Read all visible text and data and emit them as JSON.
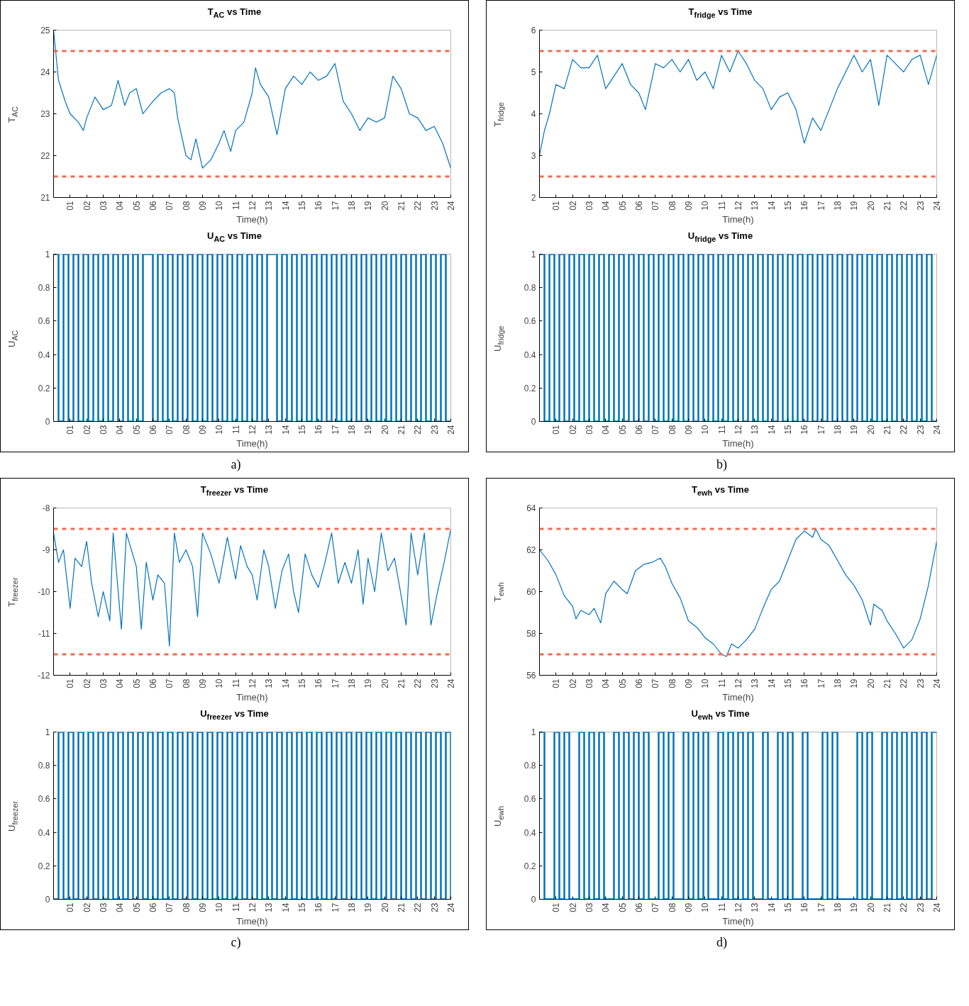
{
  "chart_data": [
    {
      "type": "line",
      "title": "T$_{AC}$ vs Time",
      "xlabel": "Time(h)",
      "ylabel": "T$_{AC}$",
      "color": "#0072bd",
      "grid": false,
      "xlim": [
        0,
        24
      ],
      "ylim": [
        21,
        25
      ],
      "yticks": [
        21,
        22,
        23,
        24,
        25
      ],
      "xticks": [
        {
          "value": 1,
          "label": "01"
        },
        {
          "value": 2,
          "label": "02"
        },
        {
          "value": 3,
          "label": "03"
        },
        {
          "value": 4,
          "label": "04"
        },
        {
          "value": 5,
          "label": "05"
        },
        {
          "value": 6,
          "label": "06"
        },
        {
          "value": 7,
          "label": "07"
        },
        {
          "value": 8,
          "label": "08"
        },
        {
          "value": 9,
          "label": "09"
        },
        {
          "value": 10,
          "label": "10"
        },
        {
          "value": 11,
          "label": "11"
        },
        {
          "value": 12,
          "label": "12"
        },
        {
          "value": 13,
          "label": "13"
        },
        {
          "value": 14,
          "label": "14"
        },
        {
          "value": 15,
          "label": "15"
        },
        {
          "value": 16,
          "label": "16"
        },
        {
          "value": 17,
          "label": "17"
        },
        {
          "value": 18,
          "label": "18"
        },
        {
          "value": 19,
          "label": "19"
        },
        {
          "value": 20,
          "label": "20"
        },
        {
          "value": 21,
          "label": "21"
        },
        {
          "value": 22,
          "label": "22"
        },
        {
          "value": 23,
          "label": "23"
        },
        {
          "value": 24,
          "label": "24"
        }
      ],
      "x": [
        0,
        0.3,
        0.7,
        1.0,
        1.5,
        1.8,
        2.0,
        2.5,
        3.0,
        3.5,
        3.9,
        4.3,
        4.6,
        5.0,
        5.4,
        6.0,
        6.5,
        7.0,
        7.3,
        7.5,
        8.0,
        8.3,
        8.6,
        9.0,
        9.5,
        10.0,
        10.3,
        10.7,
        11.0,
        11.5,
        12.0,
        12.2,
        12.5,
        13.0,
        13.5,
        14.0,
        14.5,
        15.0,
        15.5,
        16.0,
        16.5,
        17.0,
        17.5,
        18.0,
        18.5,
        19.0,
        19.5,
        20.0,
        20.5,
        21.0,
        21.5,
        22.0,
        22.5,
        23.0,
        23.5,
        24.0
      ],
      "values": [
        25.0,
        23.8,
        23.3,
        23.0,
        22.8,
        22.6,
        22.9,
        23.4,
        23.1,
        23.2,
        23.8,
        23.2,
        23.5,
        23.6,
        23.0,
        23.3,
        23.5,
        23.6,
        23.5,
        22.9,
        22.0,
        21.9,
        22.4,
        21.7,
        21.9,
        22.3,
        22.6,
        22.1,
        22.6,
        22.8,
        23.5,
        24.1,
        23.7,
        23.4,
        22.5,
        23.6,
        23.9,
        23.7,
        24.0,
        23.8,
        23.9,
        24.2,
        23.3,
        23.0,
        22.6,
        22.9,
        22.8,
        22.9,
        23.9,
        23.6,
        23.0,
        22.9,
        22.6,
        22.7,
        22.3,
        21.7
      ],
      "ref_lines": [
        {
          "axis": "y",
          "value": 24.5,
          "color": "#f26b4f",
          "line_style": "dashed"
        },
        {
          "axis": "y",
          "value": 21.5,
          "color": "#f26b4f",
          "line_style": "dashed"
        }
      ]
    },
    {
      "type": "step",
      "title": "U$_{AC}$ vs Time",
      "xlabel": "Time(h)",
      "ylabel": "U$_{AC}$",
      "color": "#0072bd",
      "grid": false,
      "xlim": [
        0,
        24
      ],
      "ylim": [
        0,
        1
      ],
      "yticks": [
        0,
        0.2,
        0.4,
        0.6,
        0.8,
        1
      ],
      "xticks": [
        {
          "value": 1,
          "label": "01"
        },
        {
          "value": 2,
          "label": "02"
        },
        {
          "value": 3,
          "label": "03"
        },
        {
          "value": 4,
          "label": "04"
        },
        {
          "value": 5,
          "label": "05"
        },
        {
          "value": 6,
          "label": "06"
        },
        {
          "value": 7,
          "label": "07"
        },
        {
          "value": 8,
          "label": "08"
        },
        {
          "value": 9,
          "label": "09"
        },
        {
          "value": 10,
          "label": "10"
        },
        {
          "value": 11,
          "label": "11"
        },
        {
          "value": 12,
          "label": "12"
        },
        {
          "value": 13,
          "label": "13"
        },
        {
          "value": 14,
          "label": "14"
        },
        {
          "value": 15,
          "label": "15"
        },
        {
          "value": 16,
          "label": "16"
        },
        {
          "value": 17,
          "label": "17"
        },
        {
          "value": 18,
          "label": "18"
        },
        {
          "value": 19,
          "label": "19"
        },
        {
          "value": 20,
          "label": "20"
        },
        {
          "value": 21,
          "label": "21"
        },
        {
          "value": 22,
          "label": "22"
        },
        {
          "value": 23,
          "label": "23"
        },
        {
          "value": 24,
          "label": "24"
        }
      ],
      "x": [
        0,
        0.3,
        0.6,
        0.9,
        1.2,
        1.5,
        1.8,
        2.1,
        2.4,
        2.7,
        3,
        3.3,
        3.6,
        3.9,
        4.2,
        4.5,
        4.8,
        5.1,
        5.4,
        5.7,
        6,
        6.3,
        6.6,
        6.9,
        7.2,
        7.5,
        7.8,
        8.1,
        8.4,
        8.7,
        9,
        9.3,
        9.6,
        9.9,
        10.2,
        10.5,
        10.8,
        11.1,
        11.4,
        11.7,
        12,
        12.3,
        12.6,
        12.9,
        13.2,
        13.5,
        13.8,
        14.1,
        14.4,
        14.7,
        15,
        15.3,
        15.6,
        15.9,
        16.2,
        16.5,
        16.8,
        17.1,
        17.4,
        17.7,
        18,
        18.3,
        18.6,
        18.9,
        19.2,
        19.5,
        19.8,
        20.1,
        20.4,
        20.7,
        21,
        21.3,
        21.6,
        21.9,
        22.2,
        22.5,
        22.8,
        23.1,
        23.4,
        23.7,
        24
      ],
      "values": [
        1,
        0,
        1,
        0,
        1,
        0,
        1,
        0,
        1,
        0,
        1,
        0,
        1,
        0,
        1,
        0,
        1,
        0,
        1,
        1,
        0,
        1,
        0,
        1,
        0,
        1,
        0,
        1,
        0,
        1,
        0,
        1,
        0,
        1,
        0,
        1,
        0,
        1,
        0,
        1,
        0,
        1,
        0,
        1,
        1,
        0,
        1,
        0,
        1,
        0,
        1,
        0,
        1,
        0,
        1,
        0,
        1,
        0,
        1,
        0,
        1,
        0,
        1,
        0,
        1,
        0,
        1,
        0,
        1,
        0,
        1,
        0,
        1,
        0,
        1,
        0,
        1,
        0,
        1,
        0,
        0
      ],
      "annotations": [
        "a)"
      ]
    },
    {
      "type": "line",
      "title": "T$_{fridge}$ vs Time",
      "xlabel": "Time(h)",
      "ylabel": "T$_{fridge}$",
      "color": "#0072bd",
      "grid": false,
      "xlim": [
        0,
        24
      ],
      "ylim": [
        2,
        6
      ],
      "yticks": [
        2,
        3,
        4,
        5,
        6
      ],
      "xticks": [
        {
          "value": 1,
          "label": "01"
        },
        {
          "value": 2,
          "label": "02"
        },
        {
          "value": 3,
          "label": "03"
        },
        {
          "value": 4,
          "label": "04"
        },
        {
          "value": 5,
          "label": "05"
        },
        {
          "value": 6,
          "label": "06"
        },
        {
          "value": 7,
          "label": "07"
        },
        {
          "value": 8,
          "label": "08"
        },
        {
          "value": 9,
          "label": "09"
        },
        {
          "value": 10,
          "label": "10"
        },
        {
          "value": 11,
          "label": "11"
        },
        {
          "value": 12,
          "label": "12"
        },
        {
          "value": 13,
          "label": "13"
        },
        {
          "value": 14,
          "label": "14"
        },
        {
          "value": 15,
          "label": "15"
        },
        {
          "value": 16,
          "label": "16"
        },
        {
          "value": 17,
          "label": "17"
        },
        {
          "value": 18,
          "label": "18"
        },
        {
          "value": 19,
          "label": "19"
        },
        {
          "value": 20,
          "label": "20"
        },
        {
          "value": 21,
          "label": "21"
        },
        {
          "value": 22,
          "label": "22"
        },
        {
          "value": 23,
          "label": "23"
        },
        {
          "value": 24,
          "label": "24"
        }
      ],
      "x": [
        0,
        0.3,
        0.6,
        1.0,
        1.5,
        2.0,
        2.5,
        3.0,
        3.5,
        4.0,
        4.5,
        5.0,
        5.5,
        6.0,
        6.4,
        7.0,
        7.5,
        8.0,
        8.5,
        9.0,
        9.5,
        10.0,
        10.5,
        11.0,
        11.5,
        12.0,
        12.5,
        13.0,
        13.5,
        14.0,
        14.5,
        15.0,
        15.5,
        16.0,
        16.5,
        17.0,
        17.5,
        18.0,
        18.5,
        19.0,
        19.5,
        20.0,
        20.5,
        21.0,
        21.5,
        22.0,
        22.5,
        23.0,
        23.5,
        24.0
      ],
      "values": [
        3.0,
        3.6,
        4.0,
        4.7,
        4.6,
        5.3,
        5.1,
        5.1,
        5.4,
        4.6,
        4.9,
        5.2,
        4.7,
        4.5,
        4.1,
        5.2,
        5.1,
        5.3,
        5.0,
        5.3,
        4.8,
        5.0,
        4.6,
        5.4,
        5.0,
        5.5,
        5.2,
        4.8,
        4.6,
        4.1,
        4.4,
        4.5,
        4.1,
        3.3,
        3.9,
        3.6,
        4.1,
        4.6,
        5.0,
        5.4,
        5.0,
        5.3,
        4.2,
        5.4,
        5.2,
        5.0,
        5.3,
        5.4,
        4.7,
        5.4
      ],
      "ref_lines": [
        {
          "axis": "y",
          "value": 5.5,
          "color": "#f26b4f",
          "line_style": "dashed"
        },
        {
          "axis": "y",
          "value": 2.5,
          "color": "#f26b4f",
          "line_style": "dashed"
        }
      ]
    },
    {
      "type": "step",
      "title": "U$_{fridge}$ vs Time",
      "xlabel": "Time(h)",
      "ylabel": "U$_{fridge}$",
      "color": "#0072bd",
      "grid": false,
      "xlim": [
        0,
        24
      ],
      "ylim": [
        0,
        1
      ],
      "yticks": [
        0,
        0.2,
        0.4,
        0.6,
        0.8,
        1
      ],
      "xticks": [
        {
          "value": 1,
          "label": "01"
        },
        {
          "value": 2,
          "label": "02"
        },
        {
          "value": 3,
          "label": "03"
        },
        {
          "value": 4,
          "label": "04"
        },
        {
          "value": 5,
          "label": "05"
        },
        {
          "value": 6,
          "label": "06"
        },
        {
          "value": 7,
          "label": "07"
        },
        {
          "value": 8,
          "label": "08"
        },
        {
          "value": 9,
          "label": "09"
        },
        {
          "value": 10,
          "label": "10"
        },
        {
          "value": 11,
          "label": "11"
        },
        {
          "value": 12,
          "label": "12"
        },
        {
          "value": 13,
          "label": "13"
        },
        {
          "value": 14,
          "label": "14"
        },
        {
          "value": 15,
          "label": "15"
        },
        {
          "value": 16,
          "label": "16"
        },
        {
          "value": 17,
          "label": "17"
        },
        {
          "value": 18,
          "label": "18"
        },
        {
          "value": 19,
          "label": "19"
        },
        {
          "value": 20,
          "label": "20"
        },
        {
          "value": 21,
          "label": "21"
        },
        {
          "value": 22,
          "label": "22"
        },
        {
          "value": 23,
          "label": "23"
        },
        {
          "value": 24,
          "label": "24"
        }
      ],
      "x": [
        0,
        0.3,
        0.6,
        0.9,
        1.2,
        1.5,
        1.8,
        2.1,
        2.4,
        2.7,
        3,
        3.3,
        3.6,
        3.9,
        4.2,
        4.5,
        4.8,
        5.1,
        5.4,
        5.7,
        6,
        6.3,
        6.6,
        6.9,
        7.2,
        7.5,
        7.8,
        8.1,
        8.4,
        8.7,
        9,
        9.3,
        9.6,
        9.9,
        10.2,
        10.5,
        10.8,
        11.1,
        11.4,
        11.7,
        12,
        12.3,
        12.6,
        12.9,
        13.2,
        13.5,
        13.8,
        14.1,
        14.4,
        14.7,
        15,
        15.3,
        15.6,
        15.9,
        16.2,
        16.5,
        16.8,
        17.1,
        17.4,
        17.7,
        18,
        18.3,
        18.6,
        18.9,
        19.2,
        19.5,
        19.8,
        20.1,
        20.4,
        20.7,
        21,
        21.3,
        21.6,
        21.9,
        22.2,
        22.5,
        22.8,
        23.1,
        23.4,
        23.7,
        24
      ],
      "values": [
        1,
        0,
        1,
        0,
        1,
        0,
        1,
        0,
        1,
        0,
        1,
        0,
        1,
        0,
        1,
        0,
        1,
        0,
        1,
        0,
        1,
        0,
        1,
        0,
        1,
        0,
        1,
        0,
        1,
        0,
        1,
        0,
        1,
        0,
        1,
        0,
        1,
        0,
        1,
        0,
        1,
        0,
        1,
        0,
        1,
        0,
        1,
        0,
        1,
        0,
        1,
        0,
        1,
        0,
        1,
        0,
        1,
        0,
        1,
        0,
        1,
        0,
        1,
        0,
        1,
        0,
        1,
        0,
        1,
        0,
        1,
        0,
        1,
        0,
        1,
        0,
        1,
        0,
        1,
        0,
        0
      ],
      "annotations": [
        "b)"
      ]
    },
    {
      "type": "line",
      "title": "T$_{freezer}$ vs Time",
      "xlabel": "Time(h)",
      "ylabel": "T$_{freezer}$",
      "color": "#0072bd",
      "grid": false,
      "xlim": [
        0,
        24
      ],
      "ylim": [
        -12,
        -8
      ],
      "yticks": [
        -12,
        -11,
        -10,
        -9,
        -8
      ],
      "xticks": [
        {
          "value": 1,
          "label": "01"
        },
        {
          "value": 2,
          "label": "02"
        },
        {
          "value": 3,
          "label": "03"
        },
        {
          "value": 4,
          "label": "04"
        },
        {
          "value": 5,
          "label": "05"
        },
        {
          "value": 6,
          "label": "06"
        },
        {
          "value": 7,
          "label": "07"
        },
        {
          "value": 8,
          "label": "08"
        },
        {
          "value": 9,
          "label": "09"
        },
        {
          "value": 10,
          "label": "10"
        },
        {
          "value": 11,
          "label": "11"
        },
        {
          "value": 12,
          "label": "12"
        },
        {
          "value": 13,
          "label": "13"
        },
        {
          "value": 14,
          "label": "14"
        },
        {
          "value": 15,
          "label": "15"
        },
        {
          "value": 16,
          "label": "16"
        },
        {
          "value": 17,
          "label": "17"
        },
        {
          "value": 18,
          "label": "18"
        },
        {
          "value": 19,
          "label": "19"
        },
        {
          "value": 20,
          "label": "20"
        },
        {
          "value": 21,
          "label": "21"
        },
        {
          "value": 22,
          "label": "22"
        },
        {
          "value": 23,
          "label": "23"
        },
        {
          "value": 24,
          "label": "24"
        }
      ],
      "x": [
        0,
        0.3,
        0.6,
        1.0,
        1.3,
        1.7,
        2.0,
        2.3,
        2.7,
        3.0,
        3.4,
        3.6,
        4.1,
        4.4,
        5.0,
        5.3,
        5.6,
        6.0,
        6.3,
        6.7,
        7.0,
        7.3,
        7.6,
        8.0,
        8.4,
        8.7,
        9.0,
        9.5,
        10.0,
        10.5,
        11.0,
        11.3,
        11.7,
        12.0,
        12.3,
        12.7,
        13.0,
        13.4,
        13.8,
        14.2,
        14.5,
        14.8,
        15.2,
        15.6,
        16.0,
        16.4,
        16.8,
        17.2,
        17.6,
        18.0,
        18.4,
        18.7,
        19.0,
        19.4,
        19.8,
        20.2,
        20.6,
        21.0,
        21.3,
        21.6,
        22.0,
        22.4,
        22.8,
        23.2,
        23.6,
        24.0
      ],
      "values": [
        -8.6,
        -9.3,
        -9.0,
        -10.4,
        -9.2,
        -9.4,
        -8.8,
        -9.8,
        -10.6,
        -10.0,
        -10.7,
        -8.6,
        -10.9,
        -8.6,
        -9.4,
        -10.9,
        -9.3,
        -10.2,
        -9.6,
        -9.8,
        -11.3,
        -8.6,
        -9.3,
        -9.0,
        -9.4,
        -10.6,
        -8.6,
        -9.1,
        -9.8,
        -8.7,
        -9.7,
        -8.9,
        -9.4,
        -9.6,
        -10.2,
        -9.0,
        -9.4,
        -10.4,
        -9.5,
        -9.1,
        -10.0,
        -10.5,
        -9.1,
        -9.6,
        -9.9,
        -9.3,
        -8.6,
        -9.8,
        -9.3,
        -9.8,
        -9.0,
        -10.3,
        -9.2,
        -10.0,
        -8.6,
        -9.5,
        -9.2,
        -10.1,
        -10.8,
        -8.6,
        -9.6,
        -8.6,
        -10.8,
        -10.0,
        -9.3,
        -8.5
      ],
      "ref_lines": [
        {
          "axis": "y",
          "value": -8.5,
          "color": "#f26b4f",
          "line_style": "dashed"
        },
        {
          "axis": "y",
          "value": -11.5,
          "color": "#f26b4f",
          "line_style": "dashed"
        }
      ]
    },
    {
      "type": "step",
      "title": "U$_{freezer}$ vs Time",
      "xlabel": "Time(h)",
      "ylabel": "U$_{freezer}$",
      "color": "#0072bd",
      "grid": false,
      "xlim": [
        0,
        24
      ],
      "ylim": [
        0,
        1
      ],
      "yticks": [
        0,
        0.2,
        0.4,
        0.6,
        0.8,
        1
      ],
      "xticks": [
        {
          "value": 1,
          "label": "01"
        },
        {
          "value": 2,
          "label": "02"
        },
        {
          "value": 3,
          "label": "03"
        },
        {
          "value": 4,
          "label": "04"
        },
        {
          "value": 5,
          "label": "05"
        },
        {
          "value": 6,
          "label": "06"
        },
        {
          "value": 7,
          "label": "07"
        },
        {
          "value": 8,
          "label": "08"
        },
        {
          "value": 9,
          "label": "09"
        },
        {
          "value": 10,
          "label": "10"
        },
        {
          "value": 11,
          "label": "11"
        },
        {
          "value": 12,
          "label": "12"
        },
        {
          "value": 13,
          "label": "13"
        },
        {
          "value": 14,
          "label": "14"
        },
        {
          "value": 15,
          "label": "15"
        },
        {
          "value": 16,
          "label": "16"
        },
        {
          "value": 17,
          "label": "17"
        },
        {
          "value": 18,
          "label": "18"
        },
        {
          "value": 19,
          "label": "19"
        },
        {
          "value": 20,
          "label": "20"
        },
        {
          "value": 21,
          "label": "21"
        },
        {
          "value": 22,
          "label": "22"
        },
        {
          "value": 23,
          "label": "23"
        },
        {
          "value": 24,
          "label": "24"
        }
      ],
      "x": [
        0,
        0.3,
        0.6,
        0.9,
        1.2,
        1.5,
        1.8,
        2.1,
        2.4,
        2.7,
        3,
        3.3,
        3.6,
        3.9,
        4.2,
        4.5,
        4.8,
        5.1,
        5.4,
        5.7,
        6,
        6.3,
        6.6,
        6.9,
        7.2,
        7.5,
        7.8,
        8.1,
        8.4,
        8.7,
        9,
        9.3,
        9.6,
        9.9,
        10.2,
        10.5,
        10.8,
        11.1,
        11.4,
        11.7,
        12,
        12.3,
        12.6,
        12.9,
        13.2,
        13.5,
        13.8,
        14.1,
        14.4,
        14.7,
        15,
        15.3,
        15.6,
        15.9,
        16.2,
        16.5,
        16.8,
        17.1,
        17.4,
        17.7,
        18,
        18.3,
        18.6,
        18.9,
        19.2,
        19.5,
        19.8,
        20.1,
        20.4,
        20.7,
        21,
        21.3,
        21.6,
        21.9,
        22.2,
        22.5,
        22.8,
        23.1,
        23.4,
        23.7,
        24
      ],
      "values": [
        0,
        1,
        0,
        1,
        0,
        1,
        0,
        1,
        0,
        1,
        0,
        1,
        0,
        1,
        0,
        1,
        0,
        1,
        0,
        1,
        0,
        1,
        0,
        1,
        0,
        1,
        0,
        1,
        0,
        1,
        0,
        1,
        0,
        1,
        0,
        1,
        0,
        1,
        0,
        1,
        0,
        1,
        0,
        1,
        0,
        1,
        0,
        1,
        0,
        1,
        0,
        1,
        0,
        1,
        0,
        1,
        0,
        1,
        0,
        1,
        0,
        1,
        0,
        1,
        0,
        1,
        0,
        1,
        0,
        1,
        0,
        1,
        0,
        1,
        0,
        1,
        0,
        1,
        0,
        1,
        0
      ],
      "annotations": [
        "c)"
      ]
    },
    {
      "type": "line",
      "title": "T$_{ewh}$ vs Time",
      "xlabel": "Time(h)",
      "ylabel": "T$_{ewh}$",
      "color": "#0072bd",
      "grid": false,
      "xlim": [
        0,
        24
      ],
      "ylim": [
        56,
        64
      ],
      "yticks": [
        56,
        58,
        60,
        62,
        64
      ],
      "xticks": [
        {
          "value": 1,
          "label": "01"
        },
        {
          "value": 2,
          "label": "02"
        },
        {
          "value": 3,
          "label": "03"
        },
        {
          "value": 4,
          "label": "04"
        },
        {
          "value": 5,
          "label": "05"
        },
        {
          "value": 6,
          "label": "06"
        },
        {
          "value": 7,
          "label": "07"
        },
        {
          "value": 8,
          "label": "08"
        },
        {
          "value": 9,
          "label": "09"
        },
        {
          "value": 10,
          "label": "10"
        },
        {
          "value": 11,
          "label": "11"
        },
        {
          "value": 12,
          "label": "12"
        },
        {
          "value": 13,
          "label": "13"
        },
        {
          "value": 14,
          "label": "14"
        },
        {
          "value": 15,
          "label": "15"
        },
        {
          "value": 16,
          "label": "16"
        },
        {
          "value": 17,
          "label": "17"
        },
        {
          "value": 18,
          "label": "18"
        },
        {
          "value": 19,
          "label": "19"
        },
        {
          "value": 20,
          "label": "20"
        },
        {
          "value": 21,
          "label": "21"
        },
        {
          "value": 22,
          "label": "22"
        },
        {
          "value": 23,
          "label": "23"
        },
        {
          "value": 24,
          "label": "24"
        }
      ],
      "x": [
        0,
        0.5,
        1.0,
        1.5,
        2.0,
        2.2,
        2.5,
        3.0,
        3.3,
        3.7,
        4.0,
        4.5,
        5.0,
        5.3,
        5.8,
        6.3,
        6.8,
        7.3,
        7.6,
        8.0,
        8.5,
        9.0,
        9.5,
        10.0,
        10.5,
        11.0,
        11.3,
        11.6,
        12.0,
        12.5,
        13.0,
        13.5,
        14.0,
        14.5,
        15.0,
        15.5,
        16.0,
        16.5,
        16.7,
        17.0,
        17.5,
        18.0,
        18.5,
        19.0,
        19.5,
        20.0,
        20.2,
        20.7,
        21.0,
        21.5,
        22.0,
        22.5,
        23.0,
        23.5,
        24.0
      ],
      "values": [
        62.0,
        61.5,
        60.8,
        59.8,
        59.3,
        58.7,
        59.1,
        58.9,
        59.2,
        58.5,
        59.9,
        60.5,
        60.1,
        59.9,
        61.0,
        61.3,
        61.4,
        61.6,
        61.2,
        60.4,
        59.7,
        58.6,
        58.3,
        57.8,
        57.5,
        57.0,
        56.9,
        57.5,
        57.3,
        57.7,
        58.2,
        59.2,
        60.1,
        60.5,
        61.5,
        62.5,
        62.9,
        62.6,
        63.0,
        62.5,
        62.2,
        61.5,
        60.8,
        60.3,
        59.6,
        58.4,
        59.4,
        59.1,
        58.6,
        58.0,
        57.3,
        57.7,
        58.7,
        60.3,
        62.4
      ],
      "ref_lines": [
        {
          "axis": "y",
          "value": 63,
          "color": "#f26b4f",
          "line_style": "dashed"
        },
        {
          "axis": "y",
          "value": 57,
          "color": "#f26b4f",
          "line_style": "dashed"
        }
      ]
    },
    {
      "type": "step",
      "title": "U$_{ewh}$ vs Time",
      "xlabel": "Time(h)",
      "ylabel": "U$_{ewh}$",
      "color": "#0072bd",
      "grid": false,
      "xlim": [
        0,
        24
      ],
      "ylim": [
        0,
        1
      ],
      "yticks": [
        0,
        0.2,
        0.4,
        0.6,
        0.8,
        1
      ],
      "xticks": [
        {
          "value": 1,
          "label": "01"
        },
        {
          "value": 2,
          "label": "02"
        },
        {
          "value": 3,
          "label": "03"
        },
        {
          "value": 4,
          "label": "04"
        },
        {
          "value": 5,
          "label": "05"
        },
        {
          "value": 6,
          "label": "06"
        },
        {
          "value": 7,
          "label": "07"
        },
        {
          "value": 8,
          "label": "08"
        },
        {
          "value": 9,
          "label": "09"
        },
        {
          "value": 10,
          "label": "10"
        },
        {
          "value": 11,
          "label": "11"
        },
        {
          "value": 12,
          "label": "12"
        },
        {
          "value": 13,
          "label": "13"
        },
        {
          "value": 14,
          "label": "14"
        },
        {
          "value": 15,
          "label": "15"
        },
        {
          "value": 16,
          "label": "16"
        },
        {
          "value": 17,
          "label": "17"
        },
        {
          "value": 18,
          "label": "18"
        },
        {
          "value": 19,
          "label": "19"
        },
        {
          "value": 20,
          "label": "20"
        },
        {
          "value": 21,
          "label": "21"
        },
        {
          "value": 22,
          "label": "22"
        },
        {
          "value": 23,
          "label": "23"
        },
        {
          "value": 24,
          "label": "24"
        }
      ],
      "x": [
        0,
        0.3,
        0.6,
        0.9,
        1.2,
        1.5,
        1.8,
        2.1,
        2.4,
        2.7,
        3,
        3.3,
        3.6,
        3.9,
        4.2,
        4.5,
        4.8,
        5.1,
        5.4,
        5.7,
        6,
        6.3,
        6.6,
        6.9,
        7.2,
        7.5,
        7.8,
        8.1,
        8.4,
        8.7,
        9,
        9.3,
        9.6,
        9.9,
        10.2,
        10.5,
        10.8,
        11.1,
        11.4,
        11.7,
        12,
        12.3,
        12.6,
        12.9,
        13.2,
        13.5,
        13.8,
        14.1,
        14.4,
        14.7,
        15,
        15.3,
        15.6,
        15.9,
        16.2,
        16.5,
        16.8,
        17.1,
        17.4,
        17.7,
        18,
        18.3,
        18.6,
        18.9,
        19.2,
        19.5,
        19.8,
        20.1,
        20.4,
        20.7,
        21,
        21.3,
        21.6,
        21.9,
        22.2,
        22.5,
        22.8,
        23.1,
        23.4,
        23.7,
        24
      ],
      "values": [
        1,
        0,
        0,
        1,
        0,
        1,
        0,
        0,
        1,
        0,
        1,
        0,
        1,
        0,
        0,
        1,
        0,
        1,
        0,
        1,
        0,
        1,
        0,
        0,
        1,
        0,
        1,
        0,
        0,
        1,
        0,
        1,
        0,
        1,
        0,
        0,
        1,
        0,
        1,
        0,
        1,
        0,
        1,
        0,
        0,
        1,
        0,
        0,
        1,
        0,
        1,
        0,
        0,
        1,
        0,
        0,
        0,
        1,
        0,
        1,
        0,
        0,
        0,
        0,
        1,
        0,
        1,
        0,
        0,
        1,
        0,
        1,
        0,
        1,
        0,
        1,
        0,
        1,
        0,
        1,
        1
      ],
      "annotations": [
        "d)"
      ]
    }
  ]
}
